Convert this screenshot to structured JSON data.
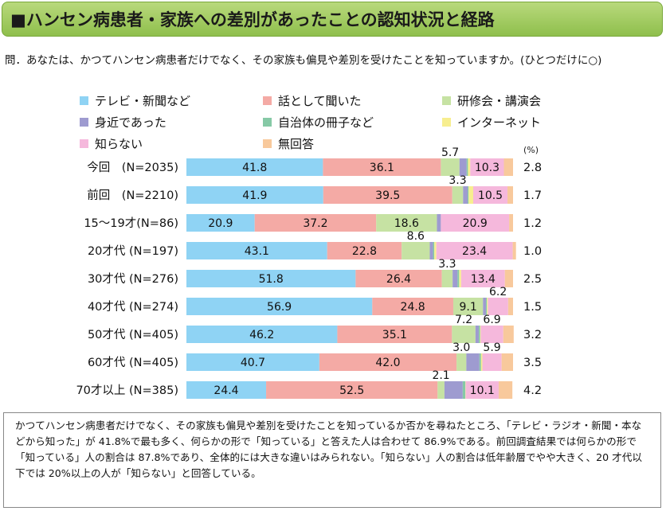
{
  "title": "■ハンセン病患者・家族への差別があったことの認知状況と経路",
  "question": "問．あなたは、かつてハンセン病患者だけでなく、その家族も偏見や差別を受けたことを知っていますか。(ひとつだけに○)",
  "chart_data": {
    "type": "bar",
    "orientation": "horizontal",
    "stacked": true,
    "unit": "(%)",
    "categories": [
      "今回　(N=2035)",
      "前回　(N=2210)",
      "15～19才(N=86)",
      "20才代 (N=197)",
      "30才代 (N=276)",
      "40才代 (N=274)",
      "50才代 (N=405)",
      "60才代 (N=405)",
      "70才以上 (N=385)"
    ],
    "series": [
      {
        "name": "テレビ・新聞など",
        "color": "#8fd3f4",
        "values": [
          41.8,
          41.9,
          20.9,
          43.1,
          51.8,
          56.9,
          46.2,
          40.7,
          24.4
        ]
      },
      {
        "name": "話として聞いた",
        "color": "#f4aaa5",
        "values": [
          36.1,
          39.5,
          37.2,
          22.8,
          26.4,
          24.8,
          35.1,
          42.0,
          52.5
        ]
      },
      {
        "name": "研修会・講演会",
        "color": "#c6e2a3",
        "values": [
          5.7,
          3.3,
          18.6,
          8.6,
          3.3,
          9.1,
          7.2,
          3.0,
          2.1
        ]
      },
      {
        "name": "身近であった",
        "color": "#9e9bd0",
        "values": [
          2.2,
          1.4,
          1.2,
          1.0,
          1.5,
          0.9,
          1.0,
          4.0,
          5.6
        ]
      },
      {
        "name": "自治体の冊子など",
        "color": "#86c9a6",
        "values": [
          0.4,
          0.3,
          0.0,
          0.4,
          0.5,
          0.3,
          0.4,
          0.5,
          0.8
        ]
      },
      {
        "name": "インターネット",
        "color": "#f7ee8f",
        "values": [
          0.7,
          1.4,
          0.0,
          0.6,
          0.6,
          0.3,
          0.2,
          0.4,
          0.1
        ]
      },
      {
        "name": "知らない",
        "color": "#f5b8dc",
        "values": [
          10.3,
          10.5,
          20.9,
          23.4,
          13.4,
          6.2,
          6.9,
          5.9,
          10.1
        ]
      },
      {
        "name": "無回答",
        "color": "#f8c99c",
        "values": [
          2.8,
          1.7,
          1.2,
          1.0,
          2.5,
          1.5,
          3.2,
          3.5,
          4.2
        ]
      }
    ],
    "labeled_series": [
      0,
      1,
      2,
      6
    ],
    "right_labels": [
      "2.8",
      "1.7",
      "1.2",
      "1.0",
      "2.5",
      "1.5",
      "3.2",
      "3.5",
      "4.2"
    ],
    "xlim": [
      0,
      100
    ]
  },
  "note": "かつてハンセン病患者だけでなく、その家族も偏見や差別を受けたことを知っているか否かを尋ねたところ、「テレビ・ラジオ・新聞・本などから知った」が 41.8%で最も多く、何らかの形で「知っている」と答えた人は合わせて 86.9%である。前回調査結果では何らかの形で「知っている」人の割合は 87.8%であり、全体的には大きな違いはみられない。「知らない」人の割合は低年齢層でやや大きく、20 才代以下では 20%以上の人が「知らない」と回答している。"
}
